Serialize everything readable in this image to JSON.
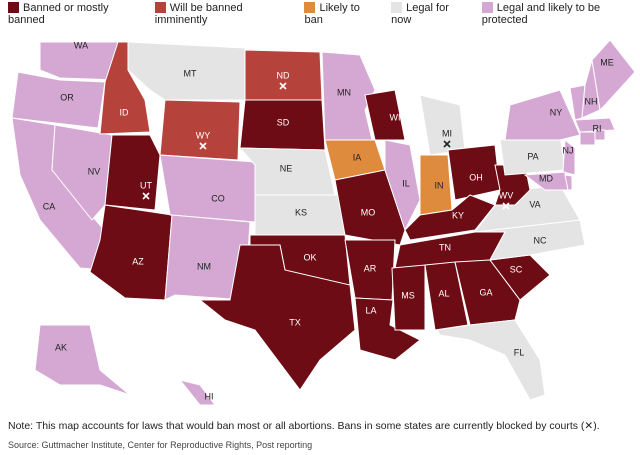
{
  "legend": [
    {
      "label": "Banned or mostly banned",
      "color": "#6d0c14",
      "states": [
        {
          "label": "WI"
        },
        {
          "label": "SD"
        },
        {
          "label": "UT",
          "blocked": true
        },
        {
          "label": "AZ"
        },
        {
          "label": "MO"
        },
        {
          "label": "OK"
        },
        {
          "label": "TX"
        },
        {
          "label": "AR"
        },
        {
          "label": "LA"
        },
        {
          "label": "MS"
        },
        {
          "label": "AL"
        },
        {
          "label": "GA"
        },
        {
          "label": "SC"
        },
        {
          "label": "TN"
        },
        {
          "label": "KY"
        },
        {
          "label": "OH"
        },
        {
          "label": "WV",
          "blocked": true
        }
      ]
    },
    {
      "label": "Will be banned imminently",
      "color": "#b5433b",
      "states": [
        {
          "label": "ID"
        },
        {
          "label": "WY",
          "blocked": true
        },
        {
          "label": "ND",
          "blocked": true
        }
      ]
    },
    {
      "label": "Likely to ban",
      "color": "#df8b3d",
      "states": [
        {
          "label": "IA"
        },
        {
          "label": "IN"
        }
      ]
    },
    {
      "label": "Legal for now",
      "color": "#e4e4e4",
      "states": [
        {
          "label": "MT"
        },
        {
          "label": "NE"
        },
        {
          "label": "KS"
        },
        {
          "label": "MI",
          "blocked": true
        },
        {
          "label": "PA"
        },
        {
          "label": "VA"
        },
        {
          "label": "NC"
        },
        {
          "label": "FL"
        }
      ]
    },
    {
      "label": "Legal and likely to be protected",
      "color": "#d5a8d3",
      "states": [
        {
          "label": "WA"
        },
        {
          "label": "OR"
        },
        {
          "label": "CA"
        },
        {
          "label": "NV"
        },
        {
          "label": "CO"
        },
        {
          "label": "NM"
        },
        {
          "label": "MN"
        },
        {
          "label": "IL"
        },
        {
          "label": "NY"
        },
        {
          "label": "ME"
        },
        {
          "label": "NH"
        },
        {
          "label": "RI"
        },
        {
          "label": "NJ"
        },
        {
          "label": "MD"
        },
        {
          "label": "AK"
        },
        {
          "label": "HI"
        }
      ]
    }
  ],
  "note": "Note: This map accounts for laws that would ban most or all abortions. Bans in some states are currently blocked by courts (✕).",
  "source": "Source: Guttmacher Institute, Center for Reproductive Rights, Post reporting"
}
